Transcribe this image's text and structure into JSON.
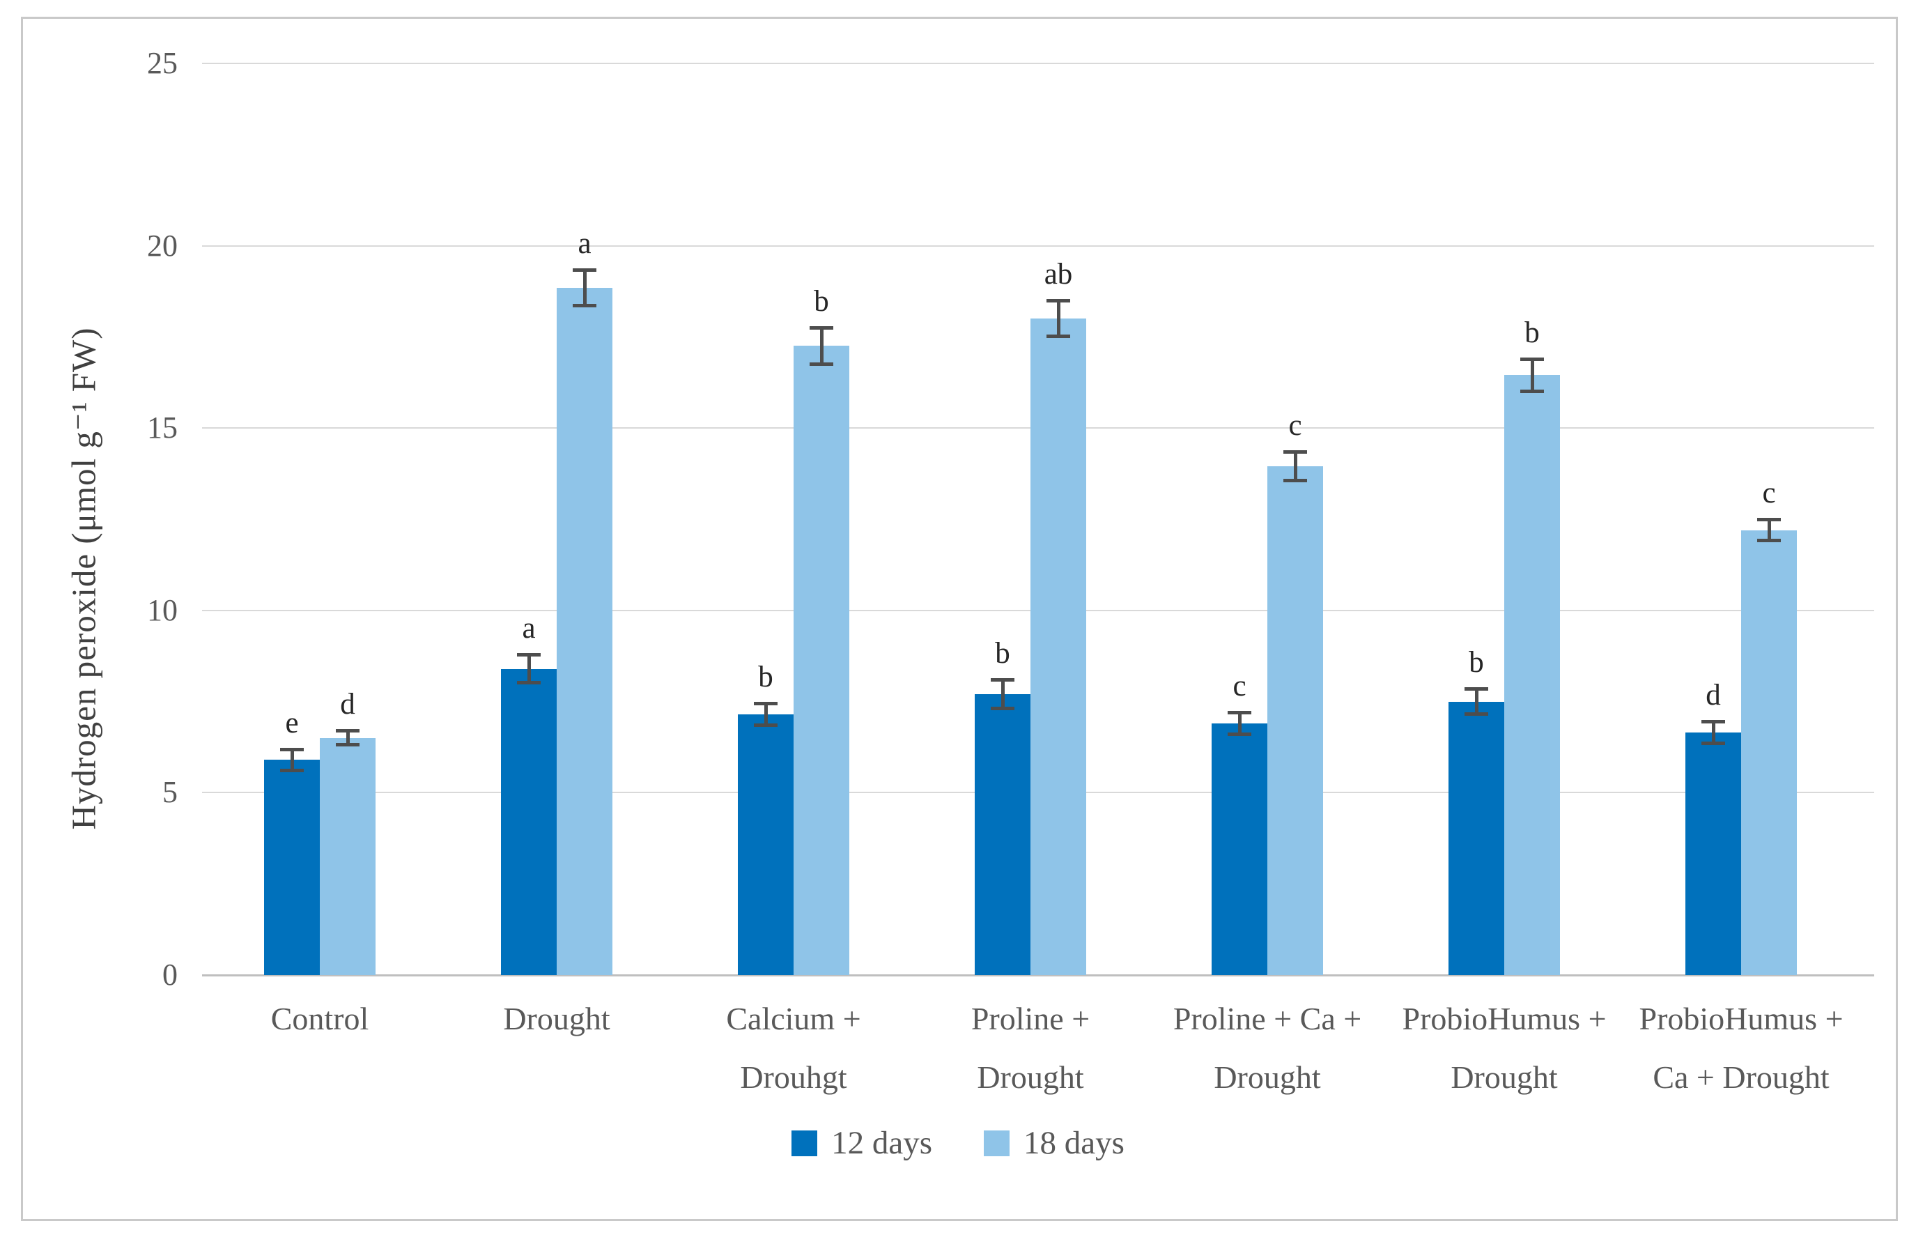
{
  "figure": {
    "background": "#ffffff",
    "border_color": "#c9c9c9"
  },
  "chart_data": {
    "type": "bar",
    "title": "",
    "xlabel": "",
    "ylabel": "Hydrogen peroxide (μmol g⁻¹ FW)",
    "ylim": [
      0,
      25
    ],
    "yticks": [
      0,
      5,
      10,
      15,
      20,
      25
    ],
    "grid": true,
    "legend_position": "bottom",
    "categories": [
      [
        "Control"
      ],
      [
        "Drought"
      ],
      [
        "Calcium +",
        "Drouhgt"
      ],
      [
        "Proline +",
        "Drought"
      ],
      [
        "Proline + Ca +",
        "Drought"
      ],
      [
        "ProbioHumus +",
        "Drought"
      ],
      [
        "ProbioHumus +",
        "Ca + Drought"
      ]
    ],
    "series": [
      {
        "name": "12 days",
        "color": "#0071bc",
        "values": [
          5.9,
          8.4,
          7.15,
          7.7,
          6.9,
          7.5,
          6.65
        ],
        "errors": [
          0.3,
          0.4,
          0.3,
          0.4,
          0.3,
          0.35,
          0.3
        ],
        "letters": [
          "e",
          "a",
          "b",
          "b",
          "c",
          "b",
          "d"
        ]
      },
      {
        "name": "18 days",
        "color": "#8fc4e8",
        "values": [
          6.5,
          18.85,
          17.25,
          18.0,
          13.95,
          16.45,
          12.2
        ],
        "errors": [
          0.2,
          0.5,
          0.5,
          0.5,
          0.4,
          0.45,
          0.3
        ],
        "letters": [
          "d",
          "a",
          "b",
          "ab",
          "c",
          "b",
          "c"
        ]
      }
    ],
    "error_bar_color": "#4d4d4d",
    "gridline_color": "#d9d9d9",
    "axis_line_color": "#bfbfbf",
    "tick_label_color": "#595959"
  }
}
